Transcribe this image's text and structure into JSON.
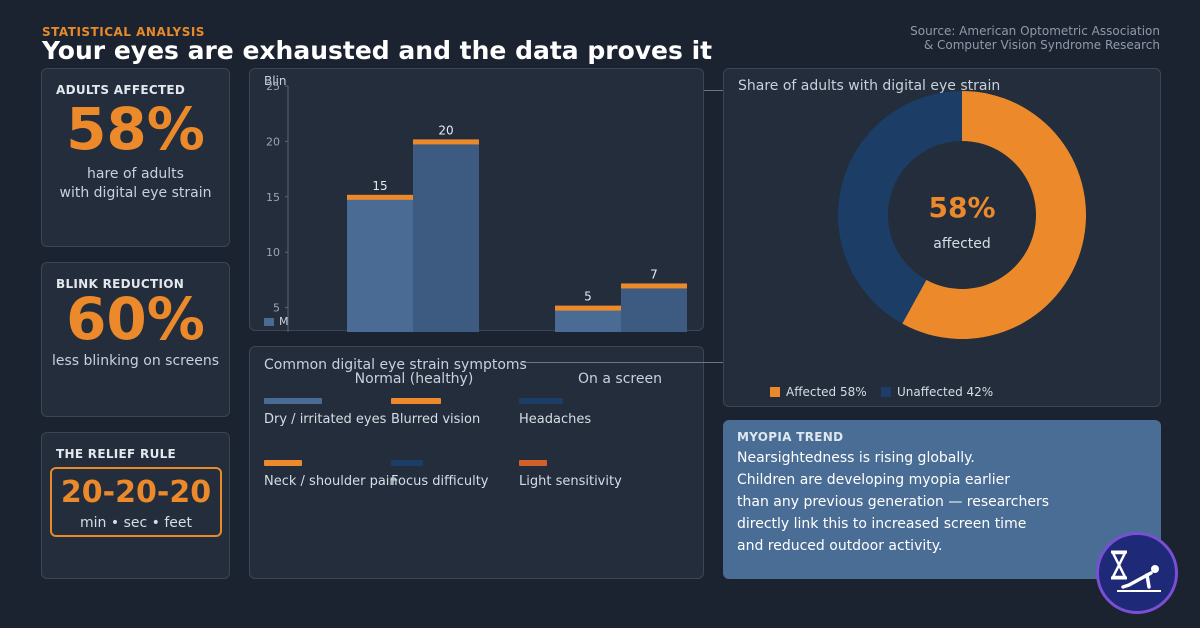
{
  "header": {
    "kicker": "STATISTICAL ANALYSIS",
    "title": "Your eyes are exhausted  and the data proves it",
    "source_line1": "Source: American Optometric Association",
    "source_line2": "& Computer Vision Syndrome Research"
  },
  "stats": {
    "adults": {
      "label": "ADULTS AFFECTED",
      "value": "58%",
      "desc_line1": "hare of adults",
      "desc_line2": "with digital eye strain"
    },
    "blink": {
      "label": "BLINK REDUCTION",
      "value": "60%",
      "desc": "less blinking on screens"
    },
    "relief": {
      "label": "THE RELIEF RULE",
      "value": "20-20-20",
      "units": "min  •  sec  •  feet"
    }
  },
  "chart_data": [
    {
      "type": "bar",
      "ylabel": "Blin",
      "ylim": [
        0,
        25
      ],
      "yticks": [
        "5",
        "10",
        "15",
        "20",
        "25"
      ],
      "categories": [
        "Normal (healthy)",
        "On a screen"
      ],
      "series": [
        {
          "values": [
            15,
            5
          ],
          "labels": [
            "15",
            "5"
          ]
        },
        {
          "values": [
            20,
            7
          ],
          "labels": [
            "20",
            "7"
          ]
        }
      ],
      "legend_label": "M",
      "colors": {
        "bar_a": "#4a6b94",
        "bar_b": "#3d5a80",
        "cap": "#ec8a2b"
      }
    },
    {
      "type": "pie",
      "title": "Share of adults with digital eye strain",
      "center_value": "58%",
      "center_label": "affected",
      "slices": [
        {
          "name": "Affected",
          "value": 58,
          "label": "Affected 58%",
          "color": "#ec8a2b"
        },
        {
          "name": "Unaffected",
          "value": 42,
          "label": "Unaffected 42%",
          "color": "#1c3d66"
        }
      ]
    }
  ],
  "symptoms": {
    "title": "Common digital eye strain symptoms",
    "items": [
      {
        "label": "Dry / irritated eyes",
        "color": "#4a6b94"
      },
      {
        "label": "Blurred vision",
        "color": "#ec8a2b"
      },
      {
        "label": "Headaches",
        "color": "#1c3d66"
      },
      {
        "label": "Neck / shoulder pain",
        "color": "#ec8a2b"
      },
      {
        "label": "Focus difficulty",
        "color": "#1c3d66"
      },
      {
        "label": "Light sensitivity",
        "color": "#d2602b"
      }
    ]
  },
  "myopia": {
    "label": "MYOPIA TREND",
    "line1": "Nearsightedness is rising globally.",
    "line2": "Children are developing myopia earlier",
    "line3": "than any previous generation — researchers",
    "line4": "directly link this to increased screen time",
    "line5": "and reduced outdoor activity."
  },
  "logo": {
    "icon": "hourglass-plank-icon"
  }
}
